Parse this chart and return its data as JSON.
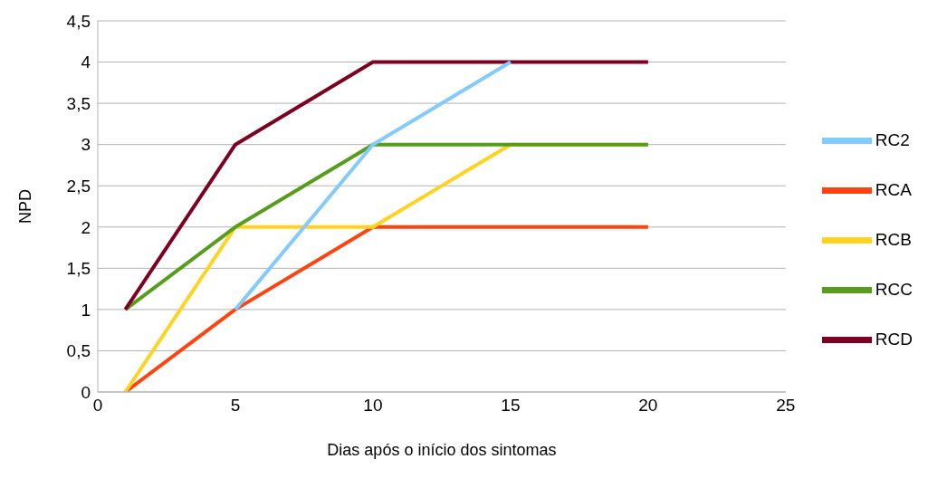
{
  "chart_data": {
    "type": "line",
    "xlabel": "Dias após o início dos sintomas",
    "ylabel": "NPD",
    "x": [
      1,
      5,
      10,
      15,
      20
    ],
    "series": [
      {
        "name": "RCA",
        "color": "#ff420e",
        "values": [
          0,
          1,
          2,
          2,
          2
        ]
      },
      {
        "name": "RCB",
        "color": "#ffd320",
        "values": [
          0,
          2,
          2,
          3,
          3
        ]
      },
      {
        "name": "RCC",
        "color": "#579d1c",
        "values": [
          1,
          2,
          3,
          3,
          3
        ]
      },
      {
        "name": "RCD",
        "color": "#7e0021",
        "values": [
          1,
          3,
          4,
          4,
          4
        ]
      },
      {
        "name": "RC2",
        "color": "#83caff",
        "values": [
          null,
          1,
          3,
          4,
          null
        ]
      }
    ],
    "xlim": [
      0,
      25
    ],
    "xticks": [
      0,
      5,
      10,
      15,
      20,
      25
    ],
    "ylim": [
      0,
      4.5
    ],
    "yticks": [
      0,
      {
        "value": 0.5,
        "label": "0,5"
      },
      1,
      {
        "value": 1.5,
        "label": "1,5"
      },
      2,
      {
        "value": 2.5,
        "label": "2,5"
      },
      3,
      {
        "value": 3.5,
        "label": "3,5"
      },
      4,
      {
        "value": 4.5,
        "label": "4,5"
      }
    ],
    "grid": "y",
    "legend": "right",
    "marker": "none",
    "line_style": "solid"
  }
}
